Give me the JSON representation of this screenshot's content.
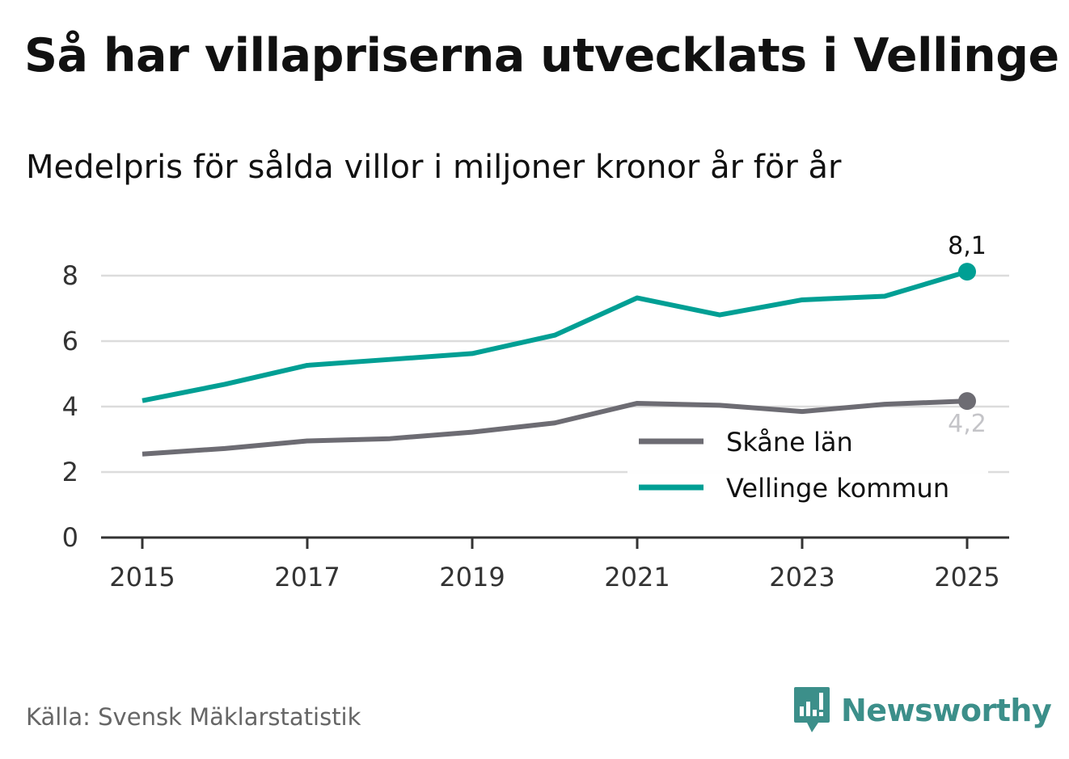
{
  "header": {
    "title": "Så har villapriserna utvecklats i Vellinge",
    "subtitle": "Medelpris för sålda villor i miljoner kronor år för år"
  },
  "footer": {
    "source": "Källa: Svensk Mäklarstatistik",
    "brand": "Newsworthy"
  },
  "colors": {
    "vellinge": "#009f94",
    "skane": "#6d6c73",
    "grid": "#dcdcdc",
    "axis": "#333333",
    "skane_label": "#c4c4c8"
  },
  "chart_data": {
    "type": "line",
    "title": "Så har villapriserna utvecklats i Vellinge",
    "subtitle": "Medelpris för sålda villor i miljoner kronor år för år",
    "xlabel": "",
    "ylabel": "",
    "x": [
      2015,
      2016,
      2017,
      2018,
      2019,
      2020,
      2021,
      2022,
      2023,
      2024,
      2025
    ],
    "xticks": [
      "2015",
      "2017",
      "2019",
      "2021",
      "2023",
      "2025"
    ],
    "yticks": [
      "0",
      "2",
      "4",
      "6",
      "8"
    ],
    "ylim": [
      0,
      9
    ],
    "grid": true,
    "legend_position": "bottom-right",
    "series": [
      {
        "name": "Skåne län",
        "values": [
          2.55,
          2.72,
          2.95,
          3.02,
          3.22,
          3.5,
          4.1,
          4.04,
          3.85,
          4.07,
          4.17
        ],
        "end_label": "4,2"
      },
      {
        "name": "Vellinge kommun",
        "values": [
          4.18,
          4.68,
          5.26,
          5.44,
          5.62,
          6.18,
          7.32,
          6.8,
          7.26,
          7.37,
          8.12
        ],
        "end_label": "8,1"
      }
    ]
  }
}
